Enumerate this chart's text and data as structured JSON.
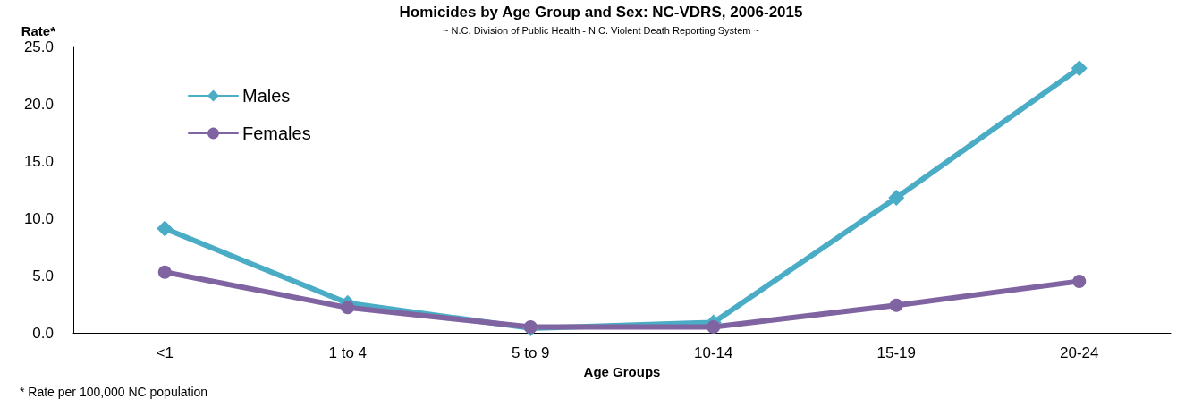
{
  "chart_data": {
    "type": "line",
    "title": "Homicides by Age Group and Sex: NC-VDRS, 2006-2015",
    "subtitle": "~ N.C. Division of Public Health - N.C. Violent Death Reporting System ~",
    "xlabel": "Age Groups",
    "ylabel": "Rate*",
    "annotations": [
      "* Rate per 100,000 NC population"
    ],
    "categories": [
      "<1",
      "1 to 4",
      "5 to 9",
      "10-14",
      "15-19",
      "20-24"
    ],
    "series": [
      {
        "name": "Males",
        "color": "#4bacc6",
        "marker": "diamond",
        "values": [
          9.1,
          2.6,
          0.4,
          0.9,
          11.8,
          23.1
        ]
      },
      {
        "name": "Females",
        "color": "#8064a2",
        "marker": "circle",
        "values": [
          5.3,
          2.2,
          0.5,
          0.5,
          2.4,
          4.5
        ]
      }
    ],
    "ylim": [
      0,
      25
    ],
    "yticks": [
      {
        "value": 0,
        "label": "0.0"
      },
      {
        "value": 5,
        "label": "5.0"
      },
      {
        "value": 10,
        "label": "10.0"
      },
      {
        "value": 15,
        "label": "15.0"
      },
      {
        "value": 20,
        "label": "20.0"
      },
      {
        "value": 25,
        "label": "25.0"
      }
    ],
    "grid": false,
    "legend": "top left"
  }
}
